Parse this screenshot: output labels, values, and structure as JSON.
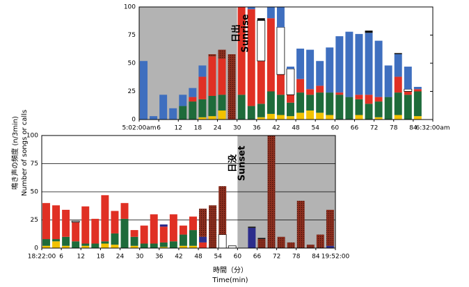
{
  "y_label_jp": "鳴き声の頻度 (n/3min)",
  "y_label_en": "Number of songs or calls",
  "x_label_jp": "時間（分）",
  "x_label_en": "Time(min)",
  "chart_data": [
    {
      "type": "bar",
      "stacked": true,
      "grid": false,
      "shade": [
        0,
        30
      ],
      "annotation": [
        "日出",
        "Sunrise"
      ],
      "xlim": [
        0,
        90
      ],
      "ylim": [
        0,
        100
      ],
      "yticks": [
        0,
        25,
        50,
        75,
        100
      ],
      "xticks": [
        {
          "value": 0,
          "label": "5:02:00am"
        },
        6,
        12,
        18,
        24,
        30,
        36,
        42,
        48,
        54,
        60,
        66,
        72,
        78,
        84,
        {
          "value": 90,
          "label": "6:32:00am"
        }
      ],
      "x": [
        0,
        3,
        6,
        9,
        12,
        15,
        18,
        21,
        24,
        27,
        30,
        33,
        36,
        39,
        42,
        45,
        48,
        51,
        54,
        57,
        60,
        63,
        66,
        69,
        72,
        75,
        78,
        81,
        84
      ],
      "series": [
        {
          "color": "#f2c200",
          "values": [
            0,
            0,
            0,
            0,
            0,
            0,
            2,
            3,
            8,
            0,
            0,
            0,
            2,
            5,
            4,
            3,
            6,
            8,
            6,
            4,
            0,
            0,
            4,
            0,
            2,
            0,
            4,
            0,
            3
          ]
        },
        {
          "color": "#1e6b3a",
          "values": [
            0,
            0,
            0,
            0,
            12,
            16,
            16,
            18,
            14,
            0,
            22,
            12,
            12,
            20,
            18,
            12,
            18,
            14,
            18,
            20,
            22,
            20,
            14,
            14,
            14,
            20,
            20,
            22,
            22
          ]
        },
        {
          "color": "#e03024",
          "values": [
            0,
            0,
            0,
            0,
            0,
            4,
            20,
            35,
            32,
            0,
            78,
            86,
            38,
            65,
            18,
            7,
            12,
            5,
            6,
            0,
            2,
            0,
            4,
            8,
            4,
            0,
            14,
            3,
            2
          ]
        },
        {
          "color": "#ffffff",
          "values": [
            0,
            0,
            0,
            0,
            0,
            0,
            0,
            0,
            0,
            0,
            0,
            0,
            36,
            0,
            42,
            23,
            0,
            0,
            0,
            0,
            0,
            0,
            0,
            0,
            0,
            0,
            0,
            2,
            0
          ]
        },
        {
          "color": "#3f6fbf",
          "values": [
            52,
            3,
            22,
            10,
            10,
            8,
            10,
            0,
            0,
            0,
            0,
            2,
            0,
            10,
            18,
            2,
            27,
            35,
            22,
            40,
            50,
            58,
            54,
            55,
            50,
            28,
            20,
            20,
            2
          ]
        },
        {
          "color": "#8b2e1e",
          "pattern": "dotted",
          "values": [
            0,
            0,
            0,
            0,
            0,
            0,
            0,
            2,
            8,
            58,
            0,
            0,
            0,
            0,
            0,
            0,
            0,
            0,
            0,
            0,
            0,
            0,
            0,
            0,
            0,
            0,
            0,
            0,
            0
          ]
        },
        {
          "color": "#111111",
          "values": [
            0,
            0,
            0,
            0,
            0,
            0,
            0,
            0,
            0,
            0,
            0,
            0,
            2,
            0,
            0,
            0,
            0,
            0,
            0,
            0,
            0,
            0,
            0,
            2,
            0,
            0,
            1,
            0,
            0
          ]
        }
      ]
    },
    {
      "type": "bar",
      "stacked": true,
      "grid": true,
      "shade": [
        60,
        90
      ],
      "annotation": [
        "日没",
        "Sunset"
      ],
      "xlim": [
        0,
        90
      ],
      "ylim": [
        0,
        100
      ],
      "yticks": [
        0,
        25,
        50,
        75,
        100
      ],
      "xticks": [
        {
          "value": 0,
          "label": "18:22:00"
        },
        6,
        12,
        18,
        24,
        30,
        36,
        42,
        48,
        54,
        60,
        66,
        72,
        78,
        84,
        {
          "value": 90,
          "label": "19:52:00"
        }
      ],
      "x": [
        0,
        3,
        6,
        9,
        12,
        15,
        18,
        21,
        24,
        27,
        30,
        33,
        36,
        39,
        42,
        45,
        48,
        51,
        54,
        57,
        60,
        63,
        66,
        69,
        72,
        75,
        78,
        81,
        84,
        87
      ],
      "series": [
        {
          "color": "#f2c200",
          "values": [
            2,
            6,
            2,
            0,
            2,
            0,
            4,
            3,
            0,
            2,
            0,
            0,
            1,
            0,
            2,
            2,
            0,
            0,
            0,
            0,
            0,
            0,
            0,
            0,
            0,
            0,
            0,
            0,
            0,
            0
          ]
        },
        {
          "color": "#1e6b3a",
          "values": [
            6,
            2,
            8,
            6,
            2,
            4,
            2,
            10,
            26,
            8,
            4,
            4,
            4,
            6,
            10,
            14,
            0,
            0,
            0,
            0,
            0,
            0,
            0,
            0,
            0,
            0,
            0,
            0,
            0,
            0
          ]
        },
        {
          "color": "#e03024",
          "values": [
            32,
            30,
            24,
            17,
            33,
            22,
            41,
            20,
            14,
            6,
            16,
            26,
            14,
            24,
            8,
            12,
            5,
            0,
            0,
            0,
            0,
            0,
            0,
            0,
            0,
            0,
            0,
            0,
            0,
            0
          ]
        },
        {
          "color": "#ffffff",
          "values": [
            0,
            0,
            0,
            1,
            0,
            0,
            0,
            0,
            0,
            0,
            0,
            0,
            0,
            0,
            0,
            0,
            0,
            0,
            12,
            2,
            0,
            0,
            0,
            0,
            0,
            0,
            0,
            0,
            0,
            0
          ]
        },
        {
          "color": "#2d2d8c",
          "values": [
            0,
            0,
            0,
            0,
            0,
            0,
            0,
            0,
            0,
            0,
            0,
            0,
            2,
            0,
            0,
            0,
            5,
            0,
            0,
            0,
            0,
            18,
            0,
            0,
            0,
            0,
            0,
            0,
            0,
            2
          ]
        },
        {
          "color": "#8b2e1e",
          "pattern": "dotted",
          "values": [
            0,
            0,
            0,
            0,
            0,
            0,
            0,
            0,
            0,
            0,
            0,
            0,
            0,
            0,
            0,
            0,
            25,
            38,
            43,
            0,
            0,
            0,
            8,
            100,
            10,
            5,
            42,
            3,
            12,
            32
          ]
        },
        {
          "color": "#111111",
          "values": [
            0,
            0,
            0,
            0,
            0,
            0,
            0,
            0,
            0,
            0,
            0,
            0,
            0,
            0,
            0,
            0,
            0,
            0,
            0,
            0,
            0,
            1,
            1,
            0,
            0,
            0,
            0,
            0,
            0,
            0
          ]
        }
      ]
    }
  ]
}
